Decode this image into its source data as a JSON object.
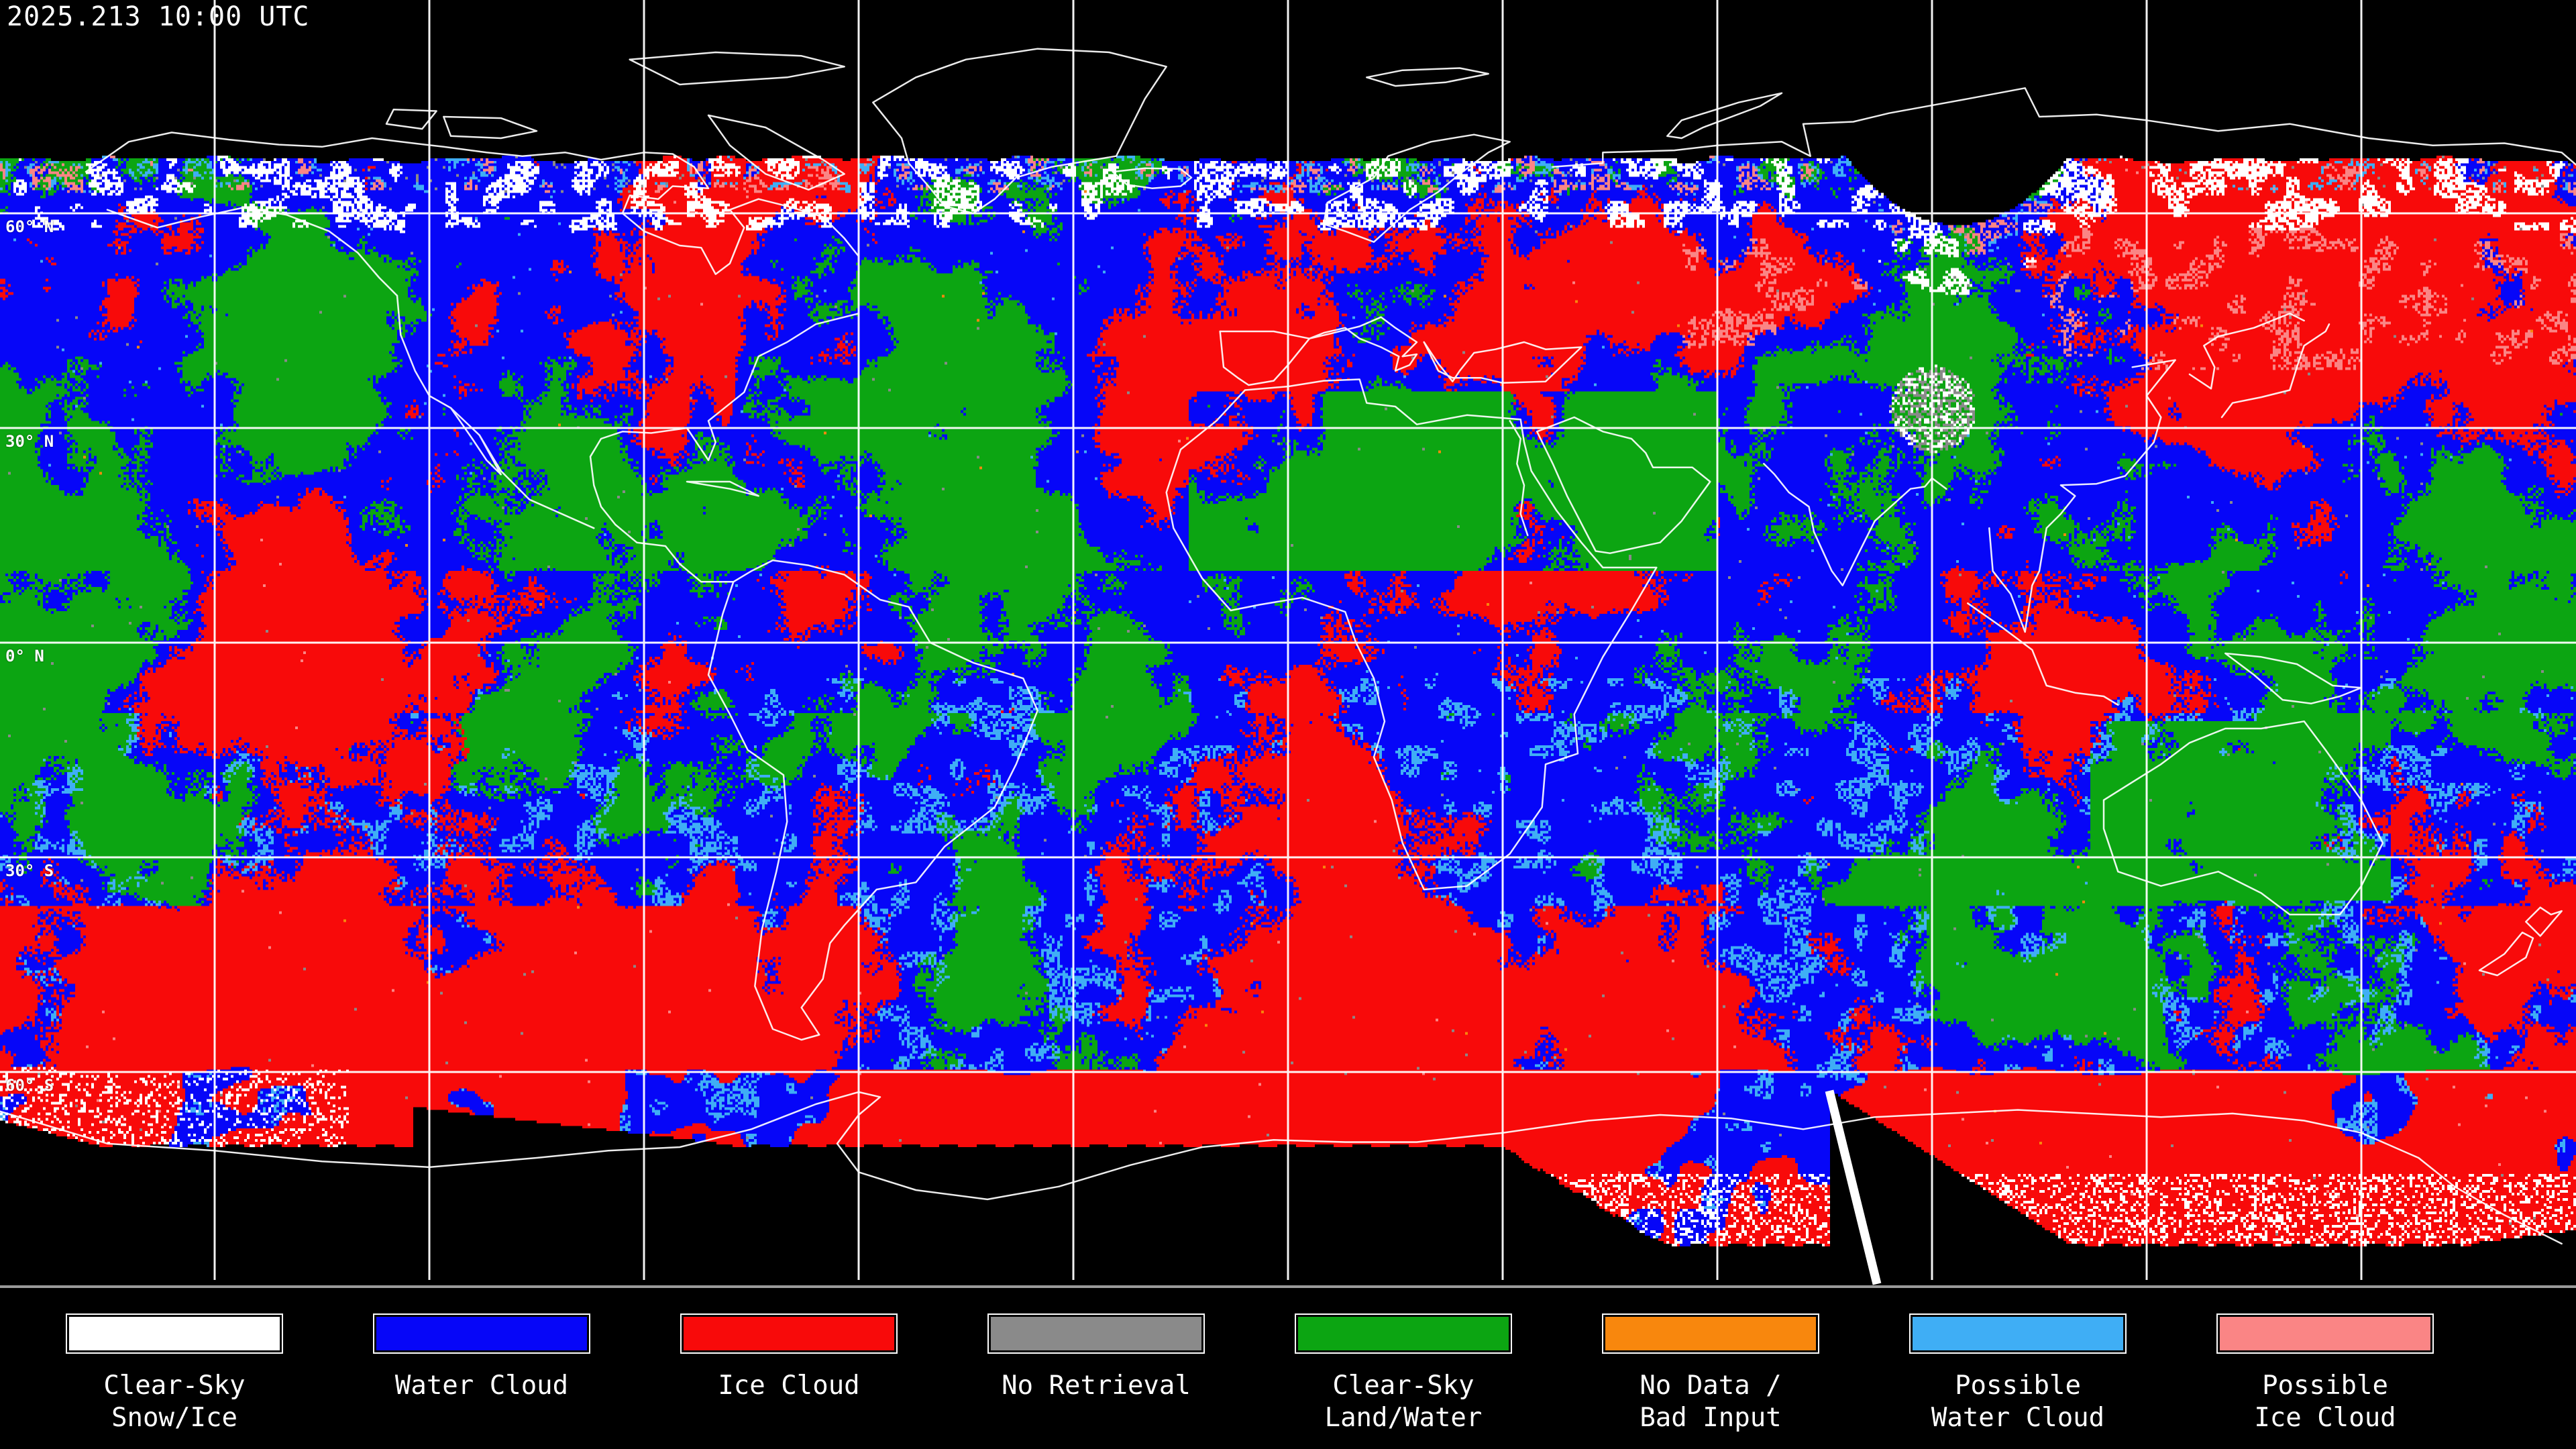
{
  "header": {
    "timestamp": "2025.213 10:00 UTC"
  },
  "map": {
    "lat_labels": [
      {
        "label": "60° N"
      },
      {
        "label": "30° N"
      },
      {
        "label": "0° N"
      },
      {
        "label": "30° S"
      },
      {
        "label": "60° S"
      }
    ],
    "grid": {
      "lat_interval_deg": 30,
      "lon_interval_deg": 30
    }
  },
  "legend": {
    "items": [
      {
        "line1": "Clear-Sky",
        "line2": "Snow/Ice",
        "color": "#FFFFFF"
      },
      {
        "line1": "Water Cloud",
        "line2": "",
        "color": "#0606F8"
      },
      {
        "line1": "Ice Cloud",
        "line2": "",
        "color": "#F80A0A"
      },
      {
        "line1": "No Retrieval",
        "line2": "",
        "color": "#8A8A8A"
      },
      {
        "line1": "Clear-Sky",
        "line2": "Land/Water",
        "color": "#0CA512"
      },
      {
        "line1": "No Data /",
        "line2": "Bad Input",
        "color": "#F8870D"
      },
      {
        "line1": "Possible",
        "line2": "Water Cloud",
        "color": "#3FAEF5"
      },
      {
        "line1": "Possible",
        "line2": "Ice Cloud",
        "color": "#FA8585"
      }
    ]
  }
}
